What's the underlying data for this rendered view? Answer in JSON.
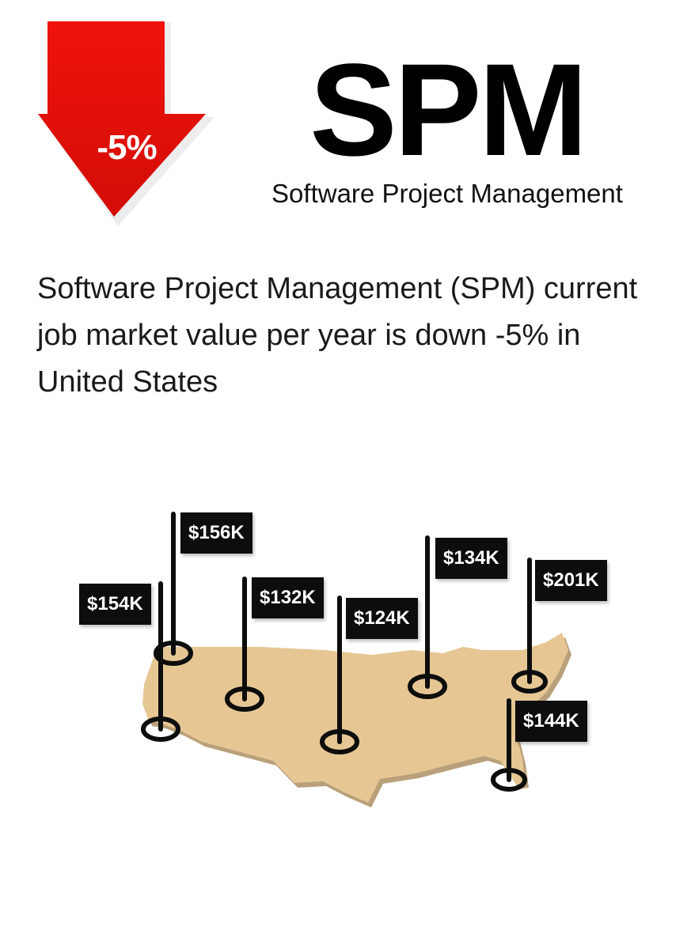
{
  "badge": {
    "change_label": "-5%",
    "color": "#e8130b"
  },
  "header": {
    "title": "SPM",
    "subtitle": "Software Project Management"
  },
  "description": "Software Project Management (SPM) current job market value per year is down -5% in United States",
  "map": {
    "fill_color": "#e6c794",
    "flags": [
      {
        "label": "$156K"
      },
      {
        "label": "$154K"
      },
      {
        "label": "$132K"
      },
      {
        "label": "$124K"
      },
      {
        "label": "$134K"
      },
      {
        "label": "$201K"
      },
      {
        "label": "$144K"
      }
    ]
  }
}
